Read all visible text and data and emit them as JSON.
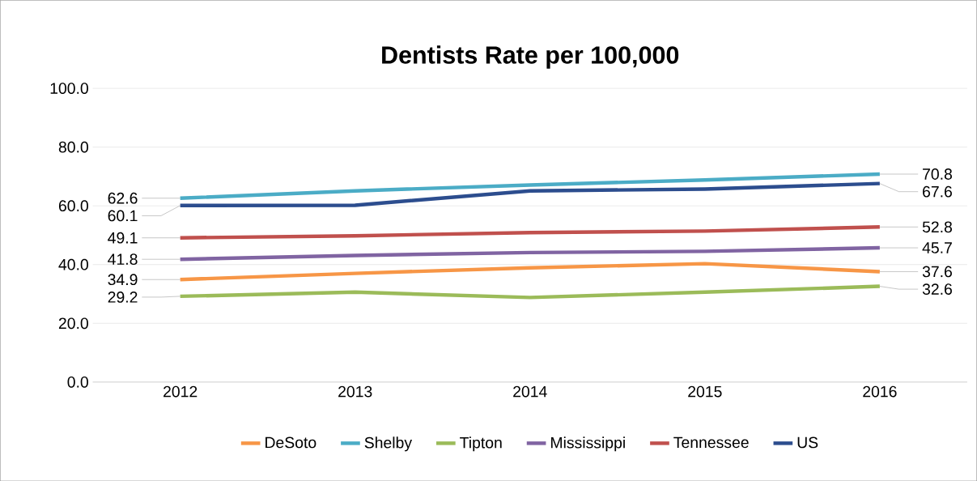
{
  "chart_data": {
    "type": "line",
    "title": "Dentists Rate per 100,000",
    "categories": [
      "2012",
      "2013",
      "2014",
      "2015",
      "2016"
    ],
    "ylim": [
      0,
      100
    ],
    "yticks": [
      {
        "value": 0,
        "label": "0.0"
      },
      {
        "value": 20,
        "label": "20.0"
      },
      {
        "value": 40,
        "label": "40.0"
      },
      {
        "value": 60,
        "label": "60.0"
      },
      {
        "value": 80,
        "label": "80.0"
      },
      {
        "value": 100,
        "label": "100.0"
      }
    ],
    "grid": "y",
    "legend": "bottom",
    "marker": "none",
    "series": [
      {
        "name": "DeSoto",
        "color": "#f79646",
        "values": [
          34.9,
          37.0,
          38.9,
          40.3,
          37.6
        ],
        "value_labels": [
          "34.9",
          null,
          null,
          null,
          "37.6"
        ]
      },
      {
        "name": "Shelby",
        "color": "#4bacc6",
        "values": [
          62.6,
          65.1,
          67.1,
          68.8,
          70.8
        ],
        "value_labels": [
          "62.6",
          null,
          null,
          null,
          "70.8"
        ]
      },
      {
        "name": "Tipton",
        "color": "#9bbb59",
        "values": [
          29.2,
          30.6,
          28.8,
          30.6,
          32.6
        ],
        "value_labels": [
          "29.2",
          null,
          null,
          null,
          "32.6"
        ]
      },
      {
        "name": "Mississippi",
        "color": "#8064a2",
        "values": [
          41.8,
          43.1,
          44.1,
          44.5,
          45.7
        ],
        "value_labels": [
          "41.8",
          null,
          null,
          null,
          "45.7"
        ]
      },
      {
        "name": "Tennessee",
        "color": "#c0504d",
        "values": [
          49.1,
          49.8,
          50.9,
          51.4,
          52.8
        ],
        "value_labels": [
          "49.1",
          null,
          null,
          null,
          "52.8"
        ]
      },
      {
        "name": "US",
        "color": "#2c4d8e",
        "values": [
          60.1,
          60.2,
          65.1,
          65.7,
          67.6
        ],
        "value_labels": [
          "60.1",
          null,
          null,
          null,
          "67.6"
        ]
      }
    ]
  }
}
